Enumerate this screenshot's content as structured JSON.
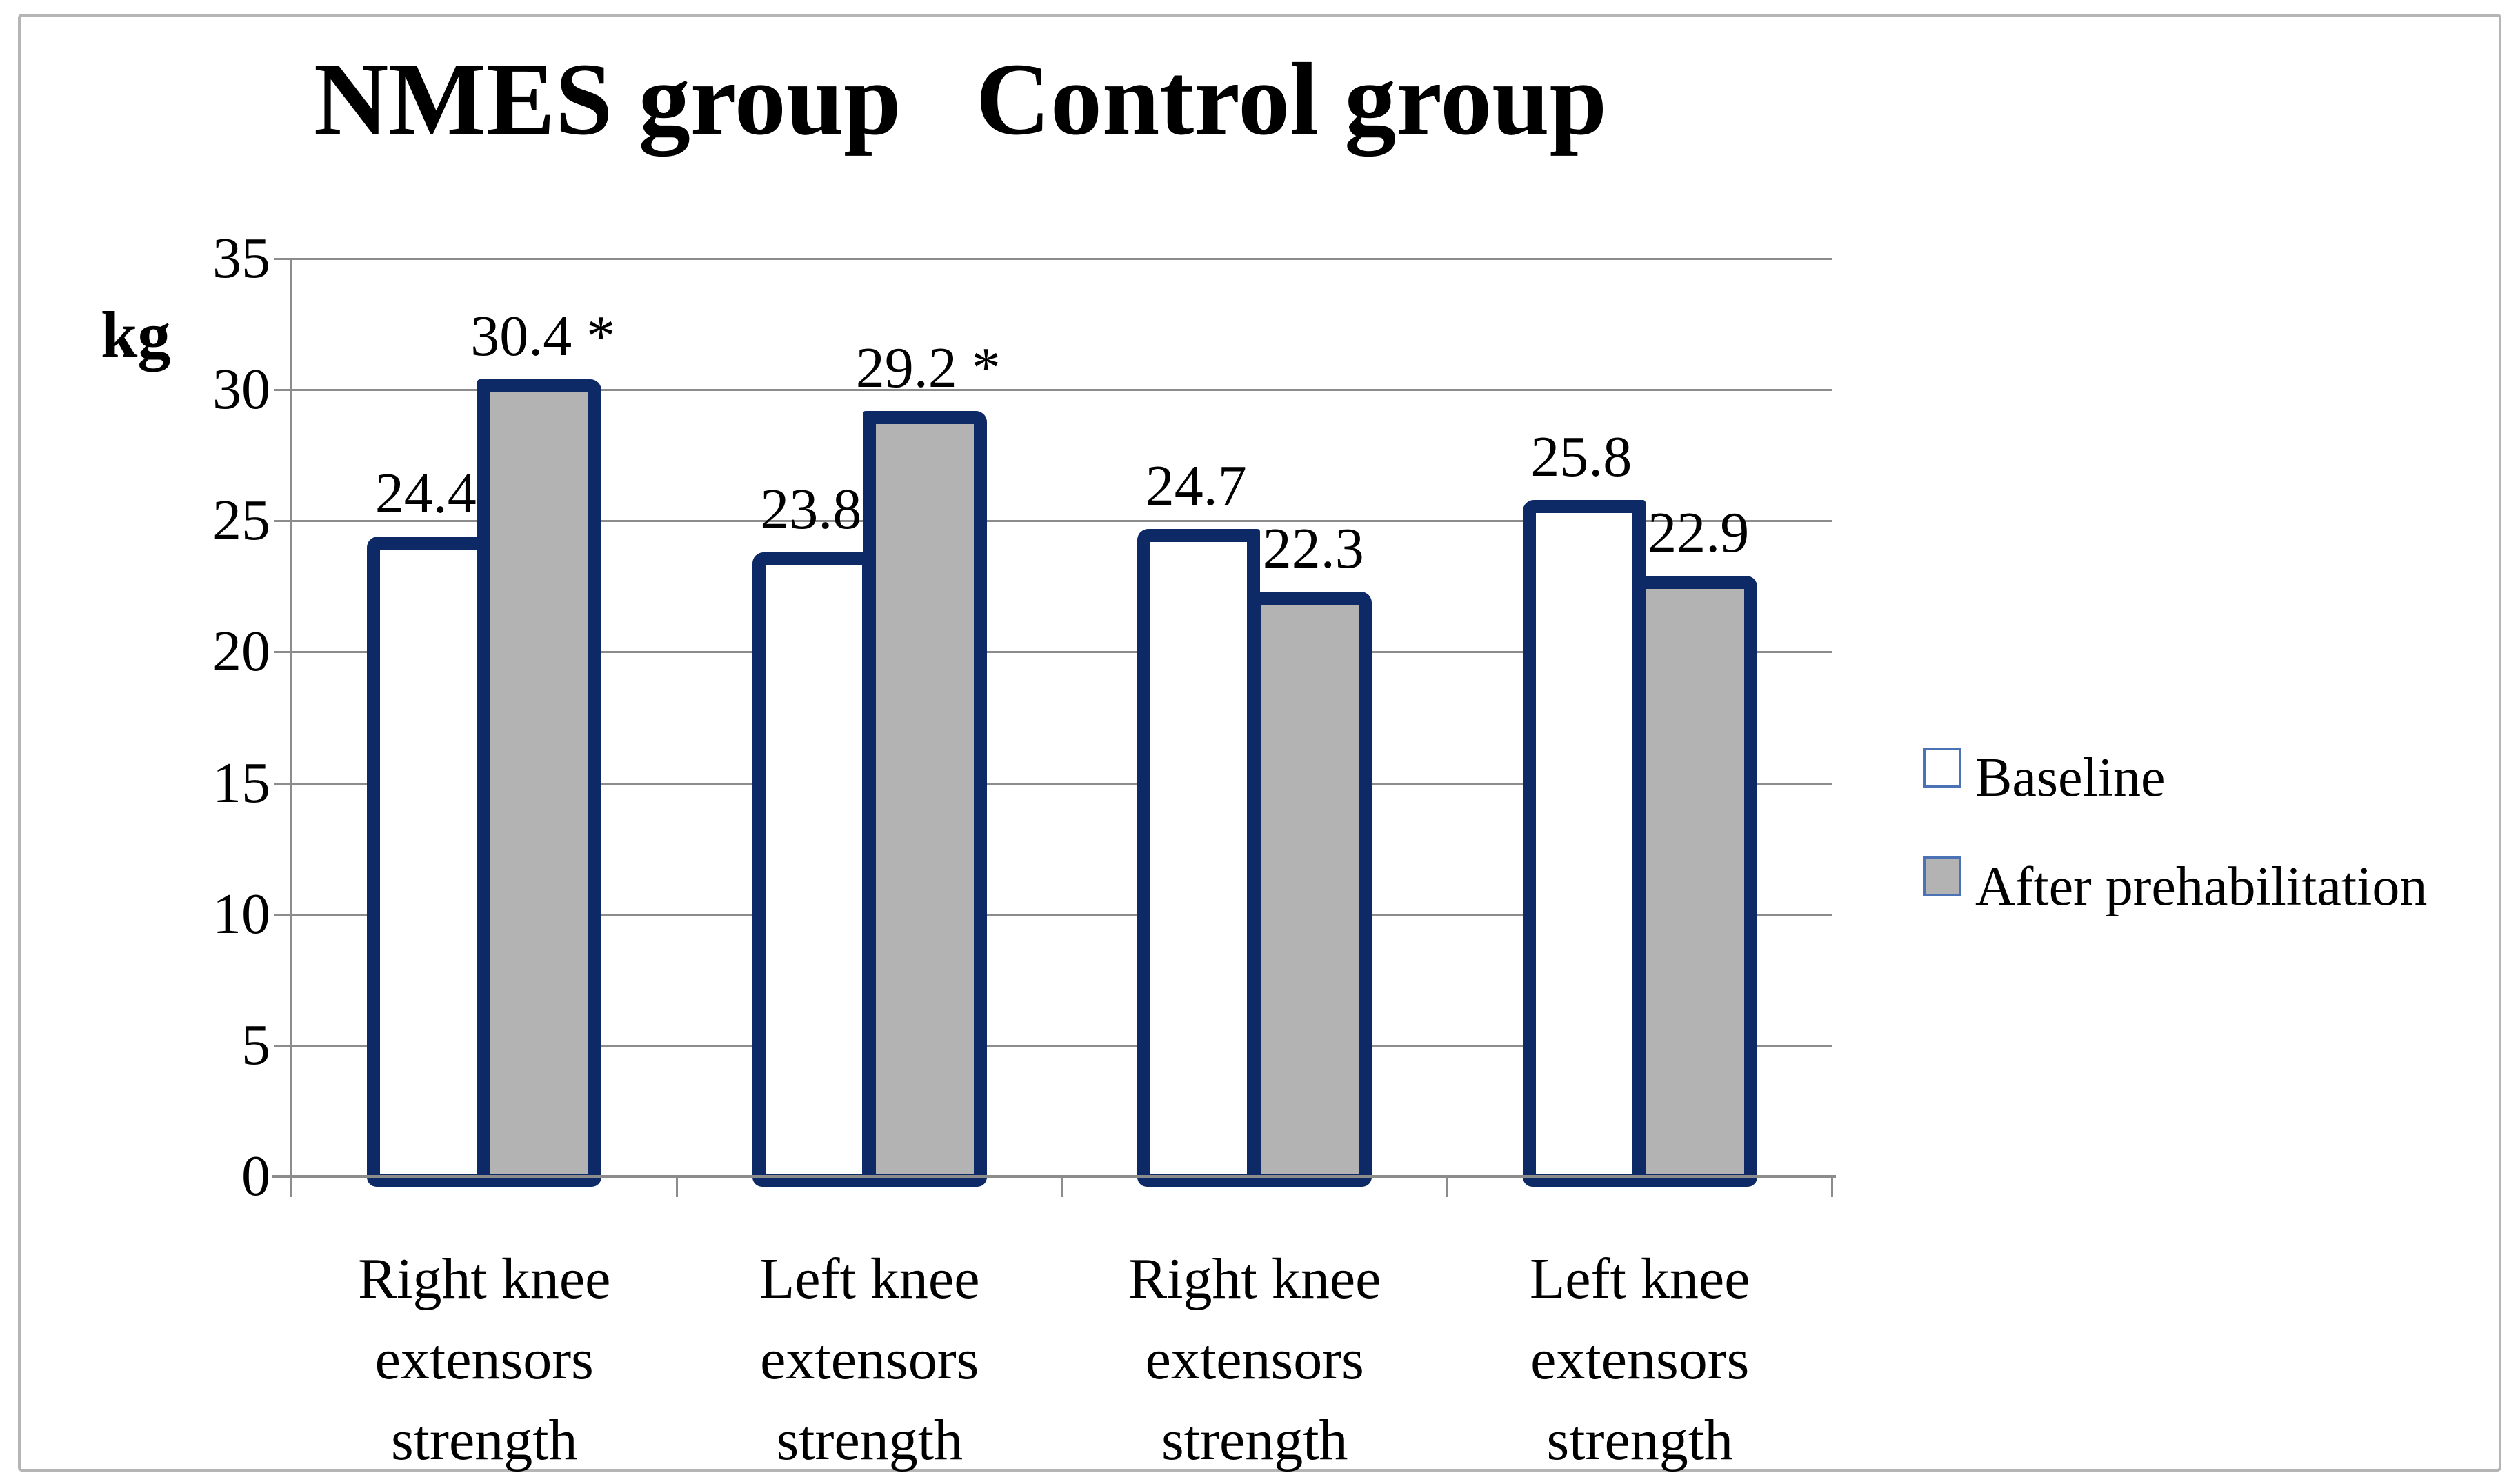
{
  "title": {
    "part1": "NMES group",
    "part2": "Control group"
  },
  "y_axis": {
    "unit_label": "kg",
    "ticks": [
      "0",
      "5",
      "10",
      "15",
      "20",
      "25",
      "30",
      "35"
    ],
    "min": 0,
    "max": 35,
    "step": 5
  },
  "legend": {
    "items": [
      {
        "label": "Baseline",
        "fill": "#ffffff"
      },
      {
        "label": "After prehabilitation",
        "fill": "#b3b3b3"
      }
    ]
  },
  "chart_data": {
    "type": "bar",
    "title": "NMES group   Control group",
    "group_headers": [
      "NMES group",
      "Control group"
    ],
    "xlabel": "",
    "ylabel": "kg",
    "ylim": [
      0,
      35
    ],
    "ytick_step": 5,
    "grid": true,
    "legend_position": "right",
    "categories": [
      "Right knee extensors strength",
      "Left knee extensors strength",
      "Right knee extensors strength",
      "Left knee extensors strength"
    ],
    "category_lines": [
      [
        "Right knee",
        "extensors",
        "strength"
      ],
      [
        "Left knee",
        "extensors",
        "strength"
      ],
      [
        "Right knee",
        "extensors",
        "strength"
      ],
      [
        "Left knee",
        "extensors",
        "strength"
      ]
    ],
    "series": [
      {
        "name": "Baseline",
        "fill": "#ffffff",
        "values": [
          24.4,
          23.8,
          24.7,
          25.8
        ],
        "data_labels": [
          "24.4",
          "23.8",
          "24.7",
          "25.8"
        ]
      },
      {
        "name": "After prehabilitation",
        "fill": "#b3b3b3",
        "values": [
          30.4,
          29.2,
          22.3,
          22.9
        ],
        "data_labels": [
          "30.4 *",
          "29.2 *",
          "22.3",
          "22.9"
        ]
      }
    ],
    "annotation_note": "*"
  },
  "colors": {
    "bar_border": "#0d2a66",
    "baseline_fill": "#ffffff",
    "after_fill": "#b3b3b3",
    "gridline": "#8c8c8c",
    "axis": "#8c8c8c",
    "legend_swatch_border": "#4a72b4",
    "text": "#000000",
    "figure_border": "#b5b5b5"
  }
}
